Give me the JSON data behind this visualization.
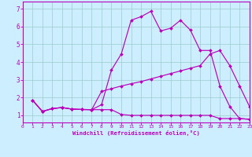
{
  "xlabel": "Windchill (Refroidissement éolien,°C)",
  "xlim": [
    0,
    23
  ],
  "ylim": [
    0.6,
    7.4
  ],
  "xticks": [
    0,
    1,
    2,
    3,
    4,
    5,
    6,
    7,
    8,
    9,
    10,
    11,
    12,
    13,
    14,
    15,
    16,
    17,
    18,
    19,
    20,
    21,
    22,
    23
  ],
  "yticks": [
    1,
    2,
    3,
    4,
    5,
    6,
    7
  ],
  "background_color": "#cceeff",
  "line_color": "#bb00bb",
  "grid_color": "#99cccc",
  "line1_x": [
    1,
    2,
    3,
    4,
    5,
    6,
    7,
    8,
    9,
    10,
    11,
    12,
    13,
    14,
    15,
    16,
    17,
    18,
    19,
    20,
    21,
    22,
    23
  ],
  "line1_y": [
    1.85,
    1.22,
    1.38,
    1.44,
    1.35,
    1.33,
    1.32,
    1.32,
    1.32,
    1.05,
    1.0,
    1.0,
    1.0,
    1.0,
    1.0,
    1.0,
    1.0,
    1.0,
    1.0,
    0.82,
    0.82,
    0.82,
    0.78
  ],
  "line2_x": [
    1,
    2,
    3,
    4,
    5,
    6,
    7,
    8,
    9,
    10,
    11,
    12,
    13,
    14,
    15,
    16,
    17,
    18,
    19,
    20,
    21,
    22,
    23
  ],
  "line2_y": [
    1.85,
    1.22,
    1.38,
    1.44,
    1.35,
    1.33,
    1.32,
    1.6,
    3.55,
    4.45,
    6.35,
    6.55,
    6.85,
    5.75,
    5.9,
    6.35,
    5.8,
    4.65,
    4.65,
    2.65,
    1.5,
    0.82,
    0.78
  ],
  "line3_x": [
    1,
    2,
    3,
    4,
    5,
    6,
    7,
    8,
    9,
    10,
    11,
    12,
    13,
    14,
    15,
    16,
    17,
    18,
    19,
    20,
    21,
    22,
    23
  ],
  "line3_y": [
    1.85,
    1.22,
    1.38,
    1.44,
    1.35,
    1.33,
    1.32,
    2.35,
    2.5,
    2.65,
    2.78,
    2.9,
    3.05,
    3.2,
    3.35,
    3.5,
    3.65,
    3.8,
    4.45,
    4.65,
    3.8,
    2.65,
    1.5
  ]
}
